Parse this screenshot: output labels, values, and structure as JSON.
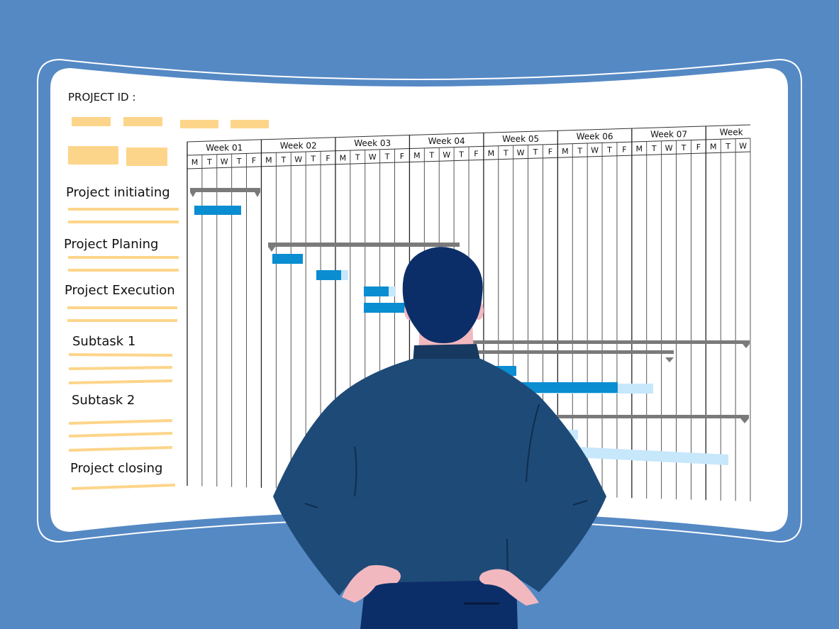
{
  "board": {
    "project_id_label": "PROJECT ID :",
    "colors": {
      "background": "#5589c4",
      "board": "#ffffff",
      "placeholder": "#fdd58a",
      "summary_bar": "#7a7a7a",
      "task_bar": "#0a8dd1",
      "task_bar_light": "#c7e7fb",
      "shirt": "#1e4a78",
      "hair": "#0c2e68",
      "skin": "#f2b8c0"
    }
  },
  "rows": [
    {
      "label": "Project initiating"
    },
    {
      "label": "Project Planing"
    },
    {
      "label": "Project Execution"
    },
    {
      "label": "Subtask 1"
    },
    {
      "label": "Subtask 2"
    },
    {
      "label": "Project closing"
    }
  ],
  "weeks": [
    "Week 01",
    "Week 02",
    "Week 03",
    "Week 04",
    "Week 05",
    "Week 06",
    "Week 07",
    "Week"
  ],
  "days": [
    "M",
    "T",
    "W",
    "T",
    "F"
  ]
}
